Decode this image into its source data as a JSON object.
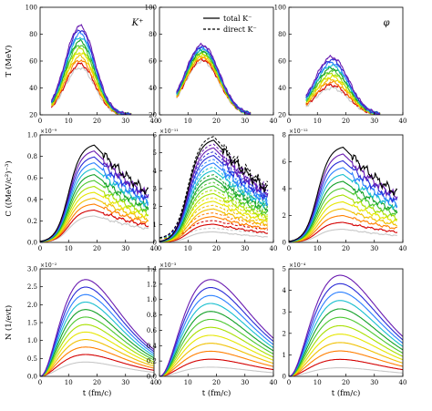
{
  "figure": {
    "xlabel": "t (fm/c)",
    "xlim": [
      0,
      40
    ],
    "xticks": [
      0,
      10,
      20,
      30,
      40
    ],
    "row_ylabels": [
      "T (MeV)",
      "C ((MeV/c²)⁻³)",
      "N (1/evt)"
    ],
    "palette": [
      "#c8c8c8",
      "#d40000",
      "#ff7f00",
      "#f0c000",
      "#e6e600",
      "#a8e000",
      "#4cc830",
      "#12a028",
      "#17becf",
      "#2a7fff",
      "#2b2bd6",
      "#6a1bb0",
      "#000000"
    ],
    "legend": {
      "placement": "top-center",
      "entries": [
        {
          "label": "total K⁻",
          "style": "solid"
        },
        {
          "label": "direct K⁻",
          "style": "dashed"
        }
      ]
    }
  },
  "chart_data": [
    {
      "type": "line",
      "name": "T-K",
      "panel_label": "K⁺",
      "ylim": [
        20,
        100
      ],
      "yticks": [
        20,
        40,
        60,
        80,
        100
      ],
      "multiplier": "",
      "peak_x": 14,
      "width_x": 7,
      "curves": 12,
      "min": 55,
      "max": 86,
      "x_start": 4,
      "x_end": 32
    },
    {
      "type": "line",
      "name": "T-Kminus",
      "panel_label": "",
      "ylim": [
        20,
        100
      ],
      "yticks": [
        20,
        40,
        60,
        80,
        100
      ],
      "multiplier": "",
      "peak_x": 15,
      "width_x": 8,
      "curves": 12,
      "min": 60,
      "max": 72,
      "x_start": 6,
      "x_end": 32
    },
    {
      "type": "line",
      "name": "T-phi",
      "panel_label": "φ",
      "ylim": [
        20,
        100
      ],
      "yticks": [
        20,
        40,
        60,
        80,
        100
      ],
      "multiplier": "",
      "peak_x": 15,
      "width_x": 8,
      "curves": 12,
      "min": 40,
      "max": 63,
      "x_start": 6,
      "x_end": 32
    },
    {
      "type": "line",
      "name": "C-K",
      "panel_label": "",
      "ylim": [
        0,
        1.0
      ],
      "yticks": [
        0.0,
        0.2,
        0.4,
        0.6,
        0.8,
        1.0
      ],
      "multiplier": "×10⁻⁹",
      "peak_x": 19,
      "width_x": 7,
      "curves": 13,
      "min": 0.25,
      "max": 0.92,
      "x_start": 0,
      "x_end": 38
    },
    {
      "type": "line",
      "name": "C-Kminus",
      "panel_label": "",
      "ylim": [
        0,
        6
      ],
      "yticks": [
        0,
        1,
        2,
        3,
        4,
        5,
        6
      ],
      "multiplier": "×10⁻¹¹",
      "peak_x": 19,
      "width_x": 7,
      "curves": 13,
      "min": 0.6,
      "max": 5.8,
      "x_start": 0,
      "x_end": 38
    },
    {
      "type": "line",
      "name": "C-phi",
      "panel_label": "",
      "ylim": [
        0,
        8
      ],
      "yticks": [
        0,
        2,
        4,
        6,
        8
      ],
      "multiplier": "×10⁻¹²",
      "peak_x": 19,
      "width_x": 7,
      "curves": 13,
      "min": 1.0,
      "max": 7.2,
      "x_start": 0,
      "x_end": 38
    },
    {
      "type": "line",
      "name": "N-K",
      "panel_label": "",
      "ylim": [
        0,
        3.0
      ],
      "yticks": [
        0.0,
        0.5,
        1.0,
        1.5,
        2.0,
        2.5,
        3.0
      ],
      "multiplier": "×10⁻²",
      "peak_x": 16,
      "width_x": 6,
      "curves": 12,
      "min": 0.4,
      "max": 2.7,
      "x_start": 0,
      "x_end": 40
    },
    {
      "type": "line",
      "name": "N-Kminus",
      "panel_label": "",
      "ylim": [
        0,
        1.4
      ],
      "yticks": [
        0.0,
        0.2,
        0.4,
        0.6,
        0.8,
        1.0,
        1.2,
        1.4
      ],
      "multiplier": "×10⁻³",
      "peak_x": 18,
      "width_x": 6,
      "curves": 12,
      "min": 0.12,
      "max": 1.26,
      "x_start": 0,
      "x_end": 40
    },
    {
      "type": "line",
      "name": "N-phi",
      "panel_label": "",
      "ylim": [
        0,
        5
      ],
      "yticks": [
        0,
        1,
        2,
        3,
        4,
        5
      ],
      "multiplier": "×10⁻⁴",
      "peak_x": 18,
      "width_x": 6,
      "curves": 12,
      "min": 0.4,
      "max": 4.7,
      "x_start": 0,
      "x_end": 40
    }
  ]
}
